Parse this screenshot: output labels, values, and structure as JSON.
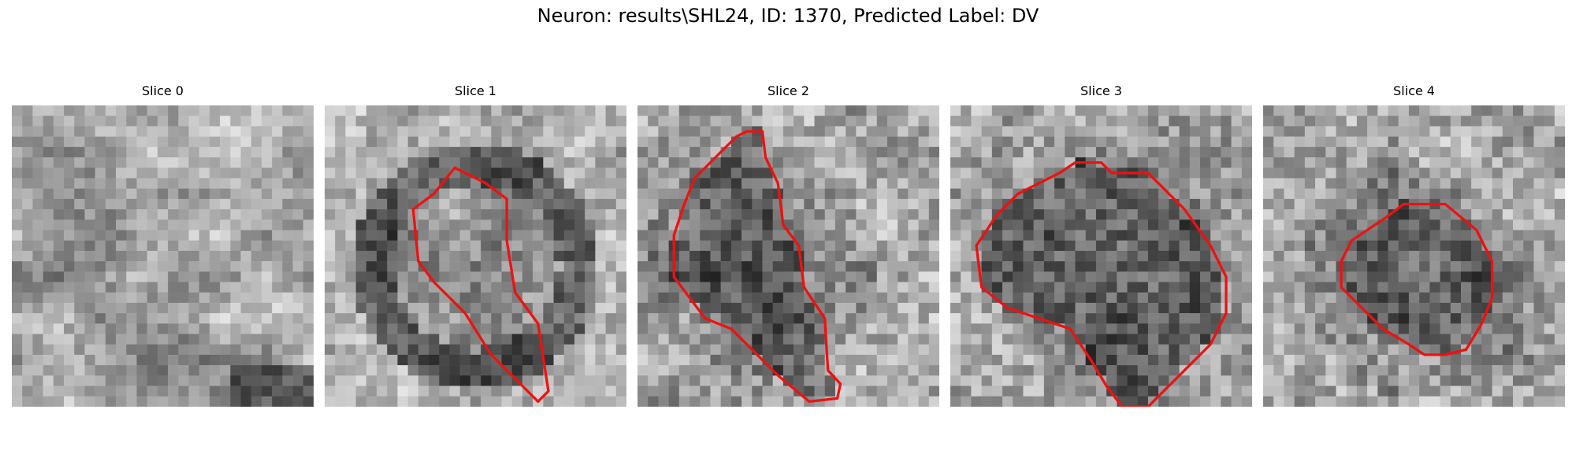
{
  "figure": {
    "title": "Neuron: results\\SHL24, ID: 1370, Predicted Label: DV",
    "contour_color": "#ee1111",
    "grid_size": 29,
    "panels": [
      {
        "title": "Slice 0",
        "pattern": "bright-diffuse",
        "contour": []
      },
      {
        "title": "Slice 1",
        "pattern": "ring",
        "contour": [
          [
            15.5,
            7.5
          ],
          [
            17.5,
            9
          ],
          [
            17.5,
            13
          ],
          [
            18.3,
            18
          ],
          [
            20.5,
            21
          ],
          [
            21.5,
            27.5
          ],
          [
            20.5,
            28.5
          ],
          [
            18,
            26
          ],
          [
            16,
            24
          ],
          [
            13.5,
            20
          ],
          [
            10.5,
            17
          ],
          [
            9,
            15
          ],
          [
            8.5,
            10
          ],
          [
            10.5,
            8.5
          ],
          [
            12.5,
            6
          ]
        ]
      },
      {
        "title": "Slice 2",
        "pattern": "blob",
        "contour": [
          [
            10.5,
            2.5
          ],
          [
            12,
            2.5
          ],
          [
            12.3,
            5
          ],
          [
            13.5,
            7.5
          ],
          [
            14,
            11.5
          ],
          [
            15.5,
            13.5
          ],
          [
            16,
            17.5
          ],
          [
            18,
            20.5
          ],
          [
            18.3,
            25.5
          ],
          [
            19.5,
            26.8
          ],
          [
            19.2,
            28.2
          ],
          [
            16.5,
            28.5
          ],
          [
            13.5,
            26
          ],
          [
            11,
            23.5
          ],
          [
            9,
            21.5
          ],
          [
            6.5,
            20.5
          ],
          [
            3.5,
            16.5
          ],
          [
            3.5,
            12.5
          ],
          [
            4.5,
            9.5
          ],
          [
            5.5,
            7
          ],
          [
            7.5,
            5
          ],
          [
            9.5,
            3
          ]
        ]
      },
      {
        "title": "Slice 3",
        "pattern": "blob",
        "contour": [
          [
            12,
            5.5
          ],
          [
            14.5,
            5.5
          ],
          [
            15.5,
            6.5
          ],
          [
            19,
            6.5
          ],
          [
            20,
            7.5
          ],
          [
            22.5,
            10
          ],
          [
            25,
            13.5
          ],
          [
            26.5,
            16.5
          ],
          [
            26.5,
            20
          ],
          [
            25,
            23
          ],
          [
            23.5,
            24.5
          ],
          [
            21.5,
            26.5
          ],
          [
            19,
            29
          ],
          [
            16.5,
            29
          ],
          [
            15,
            27
          ],
          [
            13.5,
            24.5
          ],
          [
            11.5,
            21.5
          ],
          [
            8.5,
            20.5
          ],
          [
            5.5,
            19.5
          ],
          [
            3,
            17.5
          ],
          [
            2.5,
            13.5
          ],
          [
            4.5,
            10.5
          ],
          [
            6.5,
            8.5
          ],
          [
            8.5,
            7.5
          ],
          [
            10.5,
            6.5
          ]
        ]
      },
      {
        "title": "Slice 4",
        "pattern": "blob",
        "contour": [
          [
            13.5,
            9.5
          ],
          [
            17.5,
            9.5
          ],
          [
            20.5,
            12
          ],
          [
            22,
            15
          ],
          [
            22,
            18.5
          ],
          [
            21,
            21
          ],
          [
            19.5,
            23.5
          ],
          [
            17.5,
            24
          ],
          [
            15.5,
            24
          ],
          [
            14,
            23
          ],
          [
            11.5,
            21.5
          ],
          [
            9.5,
            19.5
          ],
          [
            7.5,
            17.5
          ],
          [
            7.5,
            15
          ],
          [
            8.5,
            13
          ],
          [
            10,
            12
          ],
          [
            11.5,
            11
          ]
        ]
      }
    ]
  }
}
